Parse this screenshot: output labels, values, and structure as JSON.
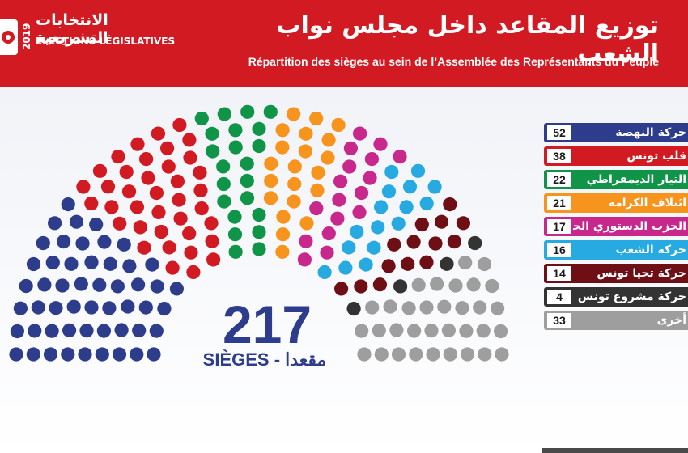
{
  "header": {
    "year": "2019",
    "elections_ar": "الانتخابات التشريعية",
    "elections_fr": "ÉLECTIONS LÉGISLATIVES",
    "title_ar": "توزيع المقاعد داخل مجلس نواب الشعب",
    "title_fr": "Répartition des sièges au sein de l’Assemblée des Représentants du Peuple"
  },
  "total": {
    "number": "217",
    "label": "SIÈGES - مقعدا"
  },
  "chart_data": {
    "type": "hemicycle",
    "total": 217,
    "series": [
      {
        "name": "حركة النهضة",
        "value": 52,
        "color": "#2e3c8c"
      },
      {
        "name": "قلب تونس",
        "value": 38,
        "color": "#d21a22"
      },
      {
        "name": "التيار الديمقراطي",
        "value": 22,
        "color": "#0f9448"
      },
      {
        "name": "ائتلاف الكرامة",
        "value": 21,
        "color": "#f7941d"
      },
      {
        "name": "الحزب الدستوري الحر",
        "value": 17,
        "color": "#c8288c"
      },
      {
        "name": "حركة الشعب",
        "value": 16,
        "color": "#27aae1"
      },
      {
        "name": "حركة تحيا تونس",
        "value": 14,
        "color": "#6d0f14"
      },
      {
        "name": "حركة مشروع تونس",
        "value": 4,
        "color": "#333333"
      },
      {
        "name": "أخرى",
        "value": 33,
        "color": "#9e9e9e"
      }
    ],
    "legend_position": "right"
  }
}
